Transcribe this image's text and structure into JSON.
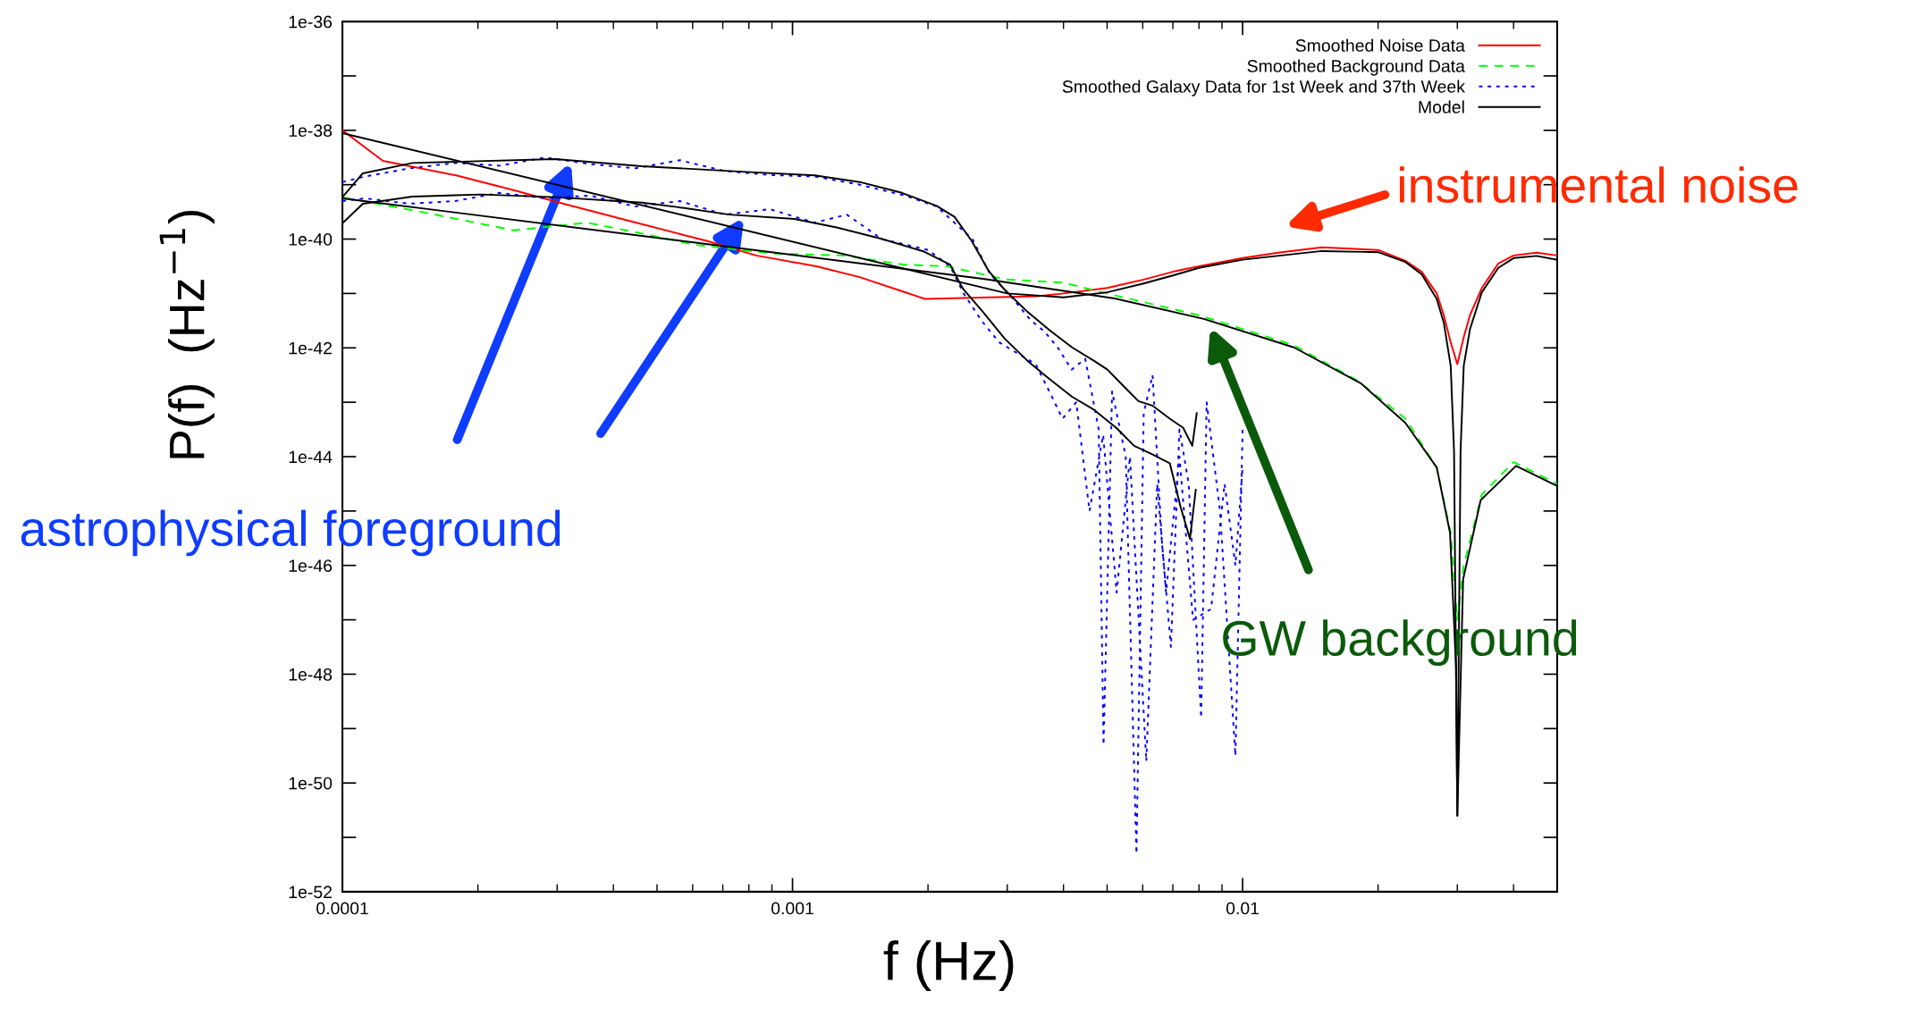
{
  "chart_data": {
    "type": "line",
    "xlabel": "f (Hz)",
    "ylabel": "P(f)  (Hz$^{−1}$)",
    "xlim": [
      0.0001,
      0.05
    ],
    "ylim": [
      1e-52,
      1e-36
    ],
    "log": "xy",
    "grid": false,
    "legend": "top right",
    "xticks": [
      0.0001,
      0.001,
      0.01
    ],
    "yticks": [
      1e-36,
      {
        "value": 1e-37,
        "label": null
      },
      1e-38,
      {
        "value": 1e-39,
        "label": null
      },
      1e-40,
      {
        "value": 1e-41,
        "label": null
      },
      1e-42,
      {
        "value": 1e-43,
        "label": null
      },
      1e-44,
      {
        "value": 1e-45,
        "label": null
      },
      1e-46,
      {
        "value": 1e-47,
        "label": null
      },
      1e-48,
      {
        "value": 1e-49,
        "label": null
      },
      1e-50,
      {
        "value": 1e-51,
        "label": null
      },
      1e-52
    ],
    "series": [
      {
        "name": "Smoothed Noise Data",
        "color": "#ff0000",
        "line_style": "solid",
        "x": [
          0.0001,
          0.000123,
          0.000179,
          0.00024,
          0.00031,
          0.00045,
          0.00065,
          0.00083,
          0.00113,
          0.00141,
          0.00197,
          0.00274,
          0.0035,
          0.004,
          0.005,
          0.006,
          0.007,
          0.008,
          0.01,
          0.012,
          0.015,
          0.02,
          0.023,
          0.025,
          0.027,
          0.028,
          0.029,
          0.03,
          0.031,
          0.032,
          0.034,
          0.037,
          0.04,
          0.045,
          0.05
        ],
        "values": [
          1e-38,
          2.75e-39,
          1.48e-39,
          7.94e-40,
          4.47e-40,
          2e-40,
          9.1e-41,
          5e-41,
          3.16e-41,
          2e-41,
          7.94e-42,
          8.5e-42,
          8.9e-42,
          1e-41,
          1.26e-41,
          1.78e-41,
          2.51e-41,
          3.16e-41,
          4.47e-41,
          5.62e-41,
          7.08e-41,
          6.31e-41,
          3.98e-41,
          2.51e-41,
          1e-41,
          3.98e-42,
          1.26e-42,
          5e-43,
          1.58e-42,
          3.98e-42,
          1.26e-41,
          3.55e-41,
          5e-41,
          5.62e-41,
          5e-41
        ]
      },
      {
        "name": "Smoothed Background Data",
        "color": "#00ff00",
        "line_style": "dashed",
        "x": [
          0.0001,
          0.00015,
          0.00024,
          0.00035,
          0.000465,
          0.0006,
          0.00091,
          0.0013,
          0.00176,
          0.0022,
          0.00297,
          0.004,
          0.005,
          0.008,
          0.013,
          0.018,
          0.023,
          0.027,
          0.029,
          0.03,
          0.031,
          0.034,
          0.04,
          0.05
        ],
        "values": [
          5.9e-40,
          3.16e-40,
          1.45e-40,
          2e-40,
          1.26e-40,
          7.94e-41,
          5.4e-41,
          5e-41,
          3.4e-41,
          3.16e-41,
          1.82e-41,
          1.58e-41,
          1e-41,
          3.98e-42,
          1.12e-42,
          2.51e-43,
          5e-44,
          6.31e-45,
          3.98e-46,
          1e-47,
          1e-46,
          2e-45,
          7.94e-45,
          3.16e-45
        ]
      },
      {
        "name": "Smoothed Galaxy Data for 1st Week and 37th Week",
        "color": "#0000ff",
        "line_style": "dotted",
        "x": [
          0.0001,
          0.000112,
          0.000141,
          0.000178,
          0.000224,
          0.000282,
          0.000355,
          0.000447,
          0.000562,
          0.000708,
          0.000891,
          0.00112,
          0.00141,
          0.00178,
          0.00209,
          0.00229,
          0.00251,
          0.00275,
          0.00302,
          0.00339,
          0.00363,
          0.00389,
          0.00417,
          0.00447,
          0.00479,
          0.00491,
          0.00513,
          0.0055,
          0.00581,
          0.00603,
          0.00631,
          0.00661,
          0.00693,
          0.00724,
          0.00759,
          0.00809,
          0.00832,
          0.00891,
          0.00964,
          0.01
        ],
        "values": [
          1.12e-39,
          1.41e-39,
          2e-39,
          2.51e-39,
          2.24e-39,
          3.16e-39,
          2.4e-39,
          2e-39,
          2.82e-39,
          1.78e-39,
          1.51e-39,
          1.41e-39,
          1e-39,
          6.31e-40,
          3.98e-40,
          2e-40,
          1e-40,
          2.24e-41,
          1e-41,
          3.16e-42,
          2e-42,
          1e-42,
          3.98e-43,
          6.31e-43,
          3.16e-44,
          5e-50,
          1.58e-43,
          1e-44,
          5e-52,
          6.31e-44,
          3.16e-43,
          3.16e-46,
          3.16e-48,
          3.16e-44,
          3.16e-45,
          1.58e-49,
          1e-43,
          1e-45,
          3.16e-50,
          3.16e-44
        ]
      },
      {
        "color": "#0000ff",
        "line_style": "dotted",
        "x": [
          0.0001,
          0.000112,
          0.000141,
          0.000178,
          0.000224,
          0.000282,
          0.000355,
          0.000447,
          0.000562,
          0.000708,
          0.000891,
          0.00112,
          0.00132,
          0.00158,
          0.00178,
          0.002,
          0.00224,
          0.0024,
          0.00263,
          0.00288,
          0.00316,
          0.00347,
          0.00372,
          0.00398,
          0.00427,
          0.00457,
          0.0049,
          0.00525,
          0.00562,
          0.00611,
          0.00646,
          0.00676,
          0.00724,
          0.00776,
          0.00851,
          0.00912,
          0.00964,
          0.01
        ],
        "values": [
          5e-40,
          5.62e-40,
          4.47e-40,
          5e-40,
          7.08e-40,
          5.62e-40,
          6.31e-40,
          3.98e-40,
          5e-40,
          2.82e-40,
          3.55e-40,
          2e-40,
          2.82e-40,
          1e-40,
          7.94e-41,
          6.31e-41,
          3.16e-41,
          1e-41,
          3.16e-42,
          1.26e-42,
          7.94e-43,
          5e-43,
          1.58e-43,
          5e-44,
          1e-43,
          1e-45,
          2.51e-44,
          3.16e-47,
          1e-44,
          2.51e-50,
          3.16e-45,
          3.16e-47,
          1e-44,
          1e-47,
          1.58e-47,
          3.16e-45,
          1e-46,
          6.31e-45
        ]
      },
      {
        "name": "Model",
        "color": "#000000",
        "line_style": "solid",
        "x": [
          0.0001,
          0.003,
          0.004,
          0.005,
          0.006,
          0.007,
          0.008,
          0.01,
          0.015,
          0.02,
          0.023,
          0.025,
          0.027,
          0.028,
          0.029,
          0.0295,
          0.03,
          0.0305,
          0.031,
          0.032,
          0.034,
          0.037,
          0.04,
          0.045,
          0.05
        ],
        "values": [
          8.9e-39,
          1e-41,
          8.5e-42,
          1.05e-41,
          1.51e-41,
          2.14e-41,
          2.95e-41,
          4.17e-41,
          6.03e-41,
          5.75e-41,
          3.8e-41,
          2.24e-41,
          7.94e-42,
          2.88e-42,
          4.68e-43,
          1.26e-44,
          2.51e-51,
          1.26e-44,
          4.68e-43,
          2.19e-42,
          1.05e-41,
          2.95e-41,
          4.47e-41,
          4.9e-41,
          4.17e-41
        ]
      },
      {
        "color": "#000000",
        "line_style": "solid",
        "x": [
          0.0001,
          0.00265,
          0.0052,
          0.0082,
          0.013,
          0.0183,
          0.023,
          0.027,
          0.0289,
          0.0298,
          0.03,
          0.0309,
          0.0338,
          0.0405,
          0.0497
        ],
        "values": [
          5.62e-40,
          1.86e-41,
          8.1e-42,
          3.4e-42,
          1.02e-42,
          2.24e-43,
          4.17e-44,
          6.31e-45,
          3.98e-46,
          1.35e-48,
          2.51e-51,
          5.5e-47,
          1.58e-45,
          6.76e-45,
          2.95e-45
        ]
      },
      {
        "color": "#000000",
        "line_style": "solid",
        "x": [
          0.0001,
          0.000111,
          0.000143,
          0.000297,
          0.000463,
          0.000807,
          0.00112,
          0.00141,
          0.00175,
          0.00209,
          0.00229,
          0.0025,
          0.00273,
          0.00296,
          0.00333,
          0.00372,
          0.00418,
          0.00468,
          0.00501,
          0.00548,
          0.00587,
          0.0063,
          0.00689,
          0.00738,
          0.00773,
          0.00791
        ],
        "values": [
          5.9e-40,
          1.62e-39,
          2.51e-39,
          2.95e-39,
          2.19e-39,
          1.7e-39,
          1.48e-39,
          1.12e-39,
          7.08e-40,
          4.07e-40,
          2.57e-40,
          9.3e-41,
          2.57e-41,
          1.17e-41,
          4.57e-42,
          2.14e-42,
          1.02e-42,
          5.75e-43,
          3.98e-43,
          1.86e-43,
          1.05e-43,
          8.7e-44,
          5e-44,
          3.39e-44,
          1.58e-44,
          6.31e-44
        ]
      },
      {
        "color": "#000000",
        "line_style": "solid",
        "x": [
          0.0001,
          0.000111,
          0.000143,
          0.000204,
          0.000297,
          0.000463,
          0.000553,
          0.000723,
          0.00101,
          0.00126,
          0.00157,
          0.00196,
          0.00224,
          0.00239,
          0.00265,
          0.00296,
          0.00333,
          0.00372,
          0.00418,
          0.00468,
          0.00524,
          0.00574,
          0.0063,
          0.00689,
          0.00729,
          0.00764,
          0.00787
        ],
        "values": [
          1.95e-40,
          4.47e-40,
          6.03e-40,
          6.61e-40,
          5.9e-40,
          4.68e-40,
          3.89e-40,
          2.82e-40,
          2.34e-40,
          1.62e-40,
          1.02e-40,
          5.89e-41,
          3.39e-41,
          1.23e-41,
          4.57e-42,
          1.48e-42,
          5.75e-43,
          2.69e-43,
          1.26e-43,
          7.24e-44,
          3.39e-44,
          1.58e-44,
          1.1e-44,
          7.59e-45,
          1.15e-45,
          3.09e-46,
          2.45e-45
        ]
      }
    ],
    "annotations": [
      "instrumental noise",
      "astrophysical foreground",
      "GW background"
    ]
  }
}
